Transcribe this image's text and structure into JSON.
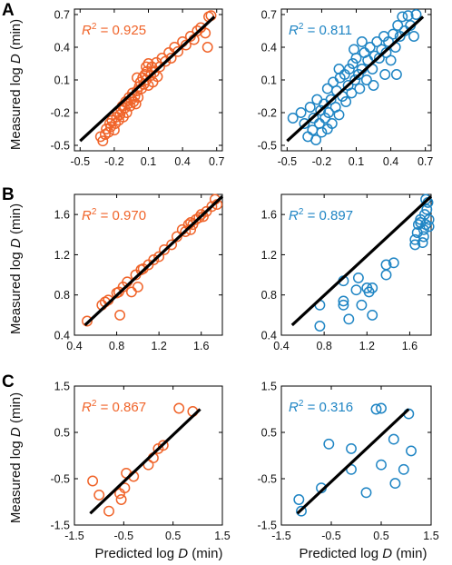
{
  "figure": {
    "xlabel_text": "Predicted log",
    "xlabel_var": "D",
    "xlabel_unit": "(min)",
    "ylabel_text": "Measured log",
    "ylabel_var": "D",
    "ylabel_unit": "(min)",
    "r2_prefix": "R",
    "r2_sup": "2",
    "colors": {
      "orange": "#f0642a",
      "blue": "#1f85c4",
      "line": "#000000",
      "axis": "#000000"
    }
  },
  "chart_data": [
    {
      "id": "A-left",
      "type": "scatter",
      "row": "A",
      "color": "orange",
      "r2_value": "0.925",
      "xlim": [
        -0.55,
        0.75
      ],
      "ylim": [
        -0.55,
        0.75
      ],
      "xticks": [
        -0.5,
        -0.2,
        0.1,
        0.4,
        0.7
      ],
      "yticks": [
        -0.5,
        -0.2,
        0.1,
        0.4,
        0.7
      ],
      "xtick_labels": [
        "-0.5",
        "-0.2",
        "0.1",
        "0.4",
        "0.7"
      ],
      "ytick_labels": [
        "-0.5",
        "-0.2",
        "0.1",
        "0.4",
        "0.7"
      ],
      "fit_line": {
        "x": [
          -0.5,
          0.68
        ],
        "y": [
          -0.46,
          0.68
        ]
      },
      "points": [
        [
          -0.32,
          -0.42
        ],
        [
          -0.3,
          -0.46
        ],
        [
          -0.28,
          -0.4
        ],
        [
          -0.27,
          -0.35
        ],
        [
          -0.25,
          -0.38
        ],
        [
          -0.24,
          -0.3
        ],
        [
          -0.23,
          -0.33
        ],
        [
          -0.22,
          -0.27
        ],
        [
          -0.2,
          -0.36
        ],
        [
          -0.19,
          -0.3
        ],
        [
          -0.18,
          -0.24
        ],
        [
          -0.17,
          -0.2
        ],
        [
          -0.16,
          -0.27
        ],
        [
          -0.15,
          -0.22
        ],
        [
          -0.14,
          -0.18
        ],
        [
          -0.13,
          -0.14
        ],
        [
          -0.12,
          -0.24
        ],
        [
          -0.11,
          -0.16
        ],
        [
          -0.1,
          -0.1
        ],
        [
          -0.09,
          -0.2
        ],
        [
          -0.08,
          -0.12
        ],
        [
          -0.07,
          -0.06
        ],
        [
          -0.06,
          -0.14
        ],
        [
          -0.05,
          -0.08
        ],
        [
          -0.04,
          -0.02
        ],
        [
          -0.03,
          -0.1
        ],
        [
          -0.02,
          -0.05
        ],
        [
          0.0,
          0.0
        ],
        [
          0.01,
          -0.06
        ],
        [
          0.02,
          0.04
        ],
        [
          0.03,
          0.08
        ],
        [
          0.04,
          0.02
        ],
        [
          0.05,
          0.12
        ],
        [
          0.06,
          0.06
        ],
        [
          0.07,
          0.15
        ],
        [
          0.08,
          0.1
        ],
        [
          0.09,
          0.18
        ],
        [
          0.1,
          0.05
        ],
        [
          0.12,
          0.14
        ],
        [
          0.13,
          0.22
        ],
        [
          0.15,
          0.17
        ],
        [
          0.17,
          0.26
        ],
        [
          0.2,
          0.22
        ],
        [
          0.22,
          0.3
        ],
        [
          0.25,
          0.27
        ],
        [
          0.28,
          0.35
        ],
        [
          0.3,
          0.3
        ],
        [
          0.33,
          0.4
        ],
        [
          0.36,
          0.36
        ],
        [
          0.4,
          0.45
        ],
        [
          0.43,
          0.42
        ],
        [
          0.47,
          0.5
        ],
        [
          0.5,
          0.47
        ],
        [
          0.53,
          0.55
        ],
        [
          0.56,
          0.58
        ],
        [
          0.6,
          0.53
        ],
        [
          0.63,
          0.68
        ],
        [
          0.65,
          0.69
        ],
        [
          0.62,
          0.4
        ],
        [
          0.0,
          0.12
        ],
        [
          0.08,
          0.22
        ],
        [
          0.18,
          0.13
        ],
        [
          -0.01,
          -0.12
        ],
        [
          0.1,
          0.25
        ],
        [
          0.14,
          0.08
        ]
      ]
    },
    {
      "id": "A-right",
      "type": "scatter",
      "row": "A",
      "color": "blue",
      "r2_value": "0.811",
      "xlim": [
        -0.55,
        0.75
      ],
      "ylim": [
        -0.55,
        0.75
      ],
      "xticks": [
        -0.5,
        -0.2,
        0.1,
        0.4,
        0.7
      ],
      "yticks": [
        -0.5,
        -0.2,
        0.1,
        0.4,
        0.7
      ],
      "xtick_labels": [
        "-0.5",
        "-0.2",
        "0.1",
        "0.4",
        "0.7"
      ],
      "ytick_labels": [
        "-0.5",
        "-0.2",
        "0.1",
        "0.4",
        "0.7"
      ],
      "fit_line": {
        "x": [
          -0.5,
          0.68
        ],
        "y": [
          -0.46,
          0.68
        ]
      },
      "points": [
        [
          -0.45,
          -0.25
        ],
        [
          -0.38,
          -0.2
        ],
        [
          -0.35,
          -0.3
        ],
        [
          -0.32,
          -0.42
        ],
        [
          -0.3,
          -0.15
        ],
        [
          -0.28,
          -0.36
        ],
        [
          -0.27,
          -0.25
        ],
        [
          -0.25,
          -0.45
        ],
        [
          -0.24,
          -0.08
        ],
        [
          -0.22,
          -0.3
        ],
        [
          -0.21,
          -0.18
        ],
        [
          -0.2,
          -0.38
        ],
        [
          -0.18,
          -0.12
        ],
        [
          -0.17,
          -0.25
        ],
        [
          -0.15,
          0.02
        ],
        [
          -0.14,
          -0.2
        ],
        [
          -0.12,
          -0.08
        ],
        [
          -0.11,
          -0.3
        ],
        [
          -0.1,
          0.08
        ],
        [
          -0.08,
          -0.15
        ],
        [
          -0.07,
          0.0
        ],
        [
          -0.05,
          -0.22
        ],
        [
          -0.04,
          0.12
        ],
        [
          -0.02,
          -0.05
        ],
        [
          0.0,
          0.15
        ],
        [
          0.01,
          -0.1
        ],
        [
          0.03,
          0.05
        ],
        [
          0.04,
          0.2
        ],
        [
          0.06,
          -0.02
        ],
        [
          0.07,
          0.25
        ],
        [
          0.09,
          0.1
        ],
        [
          0.1,
          0.3
        ],
        [
          0.12,
          0.15
        ],
        [
          0.13,
          0.02
        ],
        [
          0.15,
          0.2
        ],
        [
          0.17,
          0.35
        ],
        [
          0.19,
          0.1
        ],
        [
          0.2,
          0.28
        ],
        [
          0.22,
          0.4
        ],
        [
          0.24,
          0.2
        ],
        [
          0.26,
          0.32
        ],
        [
          0.28,
          0.45
        ],
        [
          0.3,
          0.3
        ],
        [
          0.32,
          0.38
        ],
        [
          0.34,
          0.5
        ],
        [
          0.36,
          0.35
        ],
        [
          0.38,
          0.45
        ],
        [
          0.4,
          0.28
        ],
        [
          0.42,
          0.52
        ],
        [
          0.44,
          0.4
        ],
        [
          0.46,
          0.6
        ],
        [
          0.48,
          0.5
        ],
        [
          0.5,
          0.68
        ],
        [
          0.52,
          0.55
        ],
        [
          0.55,
          0.69
        ],
        [
          0.57,
          0.6
        ],
        [
          0.6,
          0.5
        ],
        [
          0.62,
          0.7
        ],
        [
          0.35,
          0.15
        ],
        [
          0.25,
          0.05
        ],
        [
          0.15,
          0.45
        ],
        [
          -0.05,
          0.2
        ],
        [
          0.08,
          0.38
        ],
        [
          -0.15,
          -0.35
        ],
        [
          0.45,
          0.15
        ]
      ]
    },
    {
      "id": "B-left",
      "type": "scatter",
      "row": "B",
      "color": "orange",
      "r2_value": "0.970",
      "xlim": [
        0.4,
        1.8
      ],
      "ylim": [
        0.4,
        1.8
      ],
      "xticks": [
        0.4,
        0.8,
        1.2,
        1.6
      ],
      "yticks": [
        0.4,
        0.8,
        1.2,
        1.6
      ],
      "xtick_labels": [
        "0.4",
        "0.8",
        "1.2",
        "1.6"
      ],
      "ytick_labels": [
        "0.4",
        "0.8",
        "1.2",
        "1.6"
      ],
      "fit_line": {
        "x": [
          0.5,
          1.8
        ],
        "y": [
          0.5,
          1.78
        ]
      },
      "points": [
        [
          0.52,
          0.54
        ],
        [
          0.66,
          0.7
        ],
        [
          0.69,
          0.73
        ],
        [
          0.72,
          0.75
        ],
        [
          0.8,
          0.82
        ],
        [
          0.82,
          0.83
        ],
        [
          0.83,
          0.6
        ],
        [
          0.86,
          0.88
        ],
        [
          0.9,
          0.93
        ],
        [
          0.94,
          0.83
        ],
        [
          0.98,
          1.0
        ],
        [
          1.0,
          0.88
        ],
        [
          1.03,
          1.05
        ],
        [
          1.05,
          1.06
        ],
        [
          1.1,
          1.1
        ],
        [
          1.15,
          1.15
        ],
        [
          1.2,
          1.18
        ],
        [
          1.25,
          1.25
        ],
        [
          1.32,
          1.3
        ],
        [
          1.37,
          1.38
        ],
        [
          1.42,
          1.45
        ],
        [
          1.45,
          1.43
        ],
        [
          1.48,
          1.5
        ],
        [
          1.5,
          1.52
        ],
        [
          1.52,
          1.5
        ],
        [
          1.55,
          1.55
        ],
        [
          1.58,
          1.57
        ],
        [
          1.6,
          1.6
        ],
        [
          1.62,
          1.58
        ],
        [
          1.65,
          1.63
        ],
        [
          1.7,
          1.68
        ],
        [
          1.73,
          1.75
        ],
        [
          1.75,
          1.7
        ],
        [
          1.5,
          1.45
        ]
      ]
    },
    {
      "id": "B-right",
      "type": "scatter",
      "row": "B",
      "color": "blue",
      "r2_value": "0.897",
      "xlim": [
        0.4,
        1.8
      ],
      "ylim": [
        0.4,
        1.8
      ],
      "xticks": [
        0.4,
        0.8,
        1.2,
        1.6
      ],
      "yticks": [
        0.4,
        0.8,
        1.2,
        1.6
      ],
      "xtick_labels": [
        "0.4",
        "0.8",
        "1.2",
        "1.6"
      ],
      "ytick_labels": [
        "0.4",
        "0.8",
        "1.2",
        "1.6"
      ],
      "fit_line": {
        "x": [
          0.5,
          1.8
        ],
        "y": [
          0.5,
          1.78
        ]
      },
      "points": [
        [
          0.76,
          0.49
        ],
        [
          0.76,
          0.7
        ],
        [
          0.98,
          0.7
        ],
        [
          0.98,
          0.74
        ],
        [
          0.98,
          0.94
        ],
        [
          1.03,
          0.56
        ],
        [
          1.1,
          0.85
        ],
        [
          1.12,
          0.97
        ],
        [
          1.15,
          0.7
        ],
        [
          1.2,
          0.87
        ],
        [
          1.22,
          0.83
        ],
        [
          1.25,
          0.87
        ],
        [
          1.25,
          0.6
        ],
        [
          1.38,
          1.0
        ],
        [
          1.38,
          1.1
        ],
        [
          1.45,
          1.12
        ],
        [
          1.65,
          1.3
        ],
        [
          1.65,
          1.35
        ],
        [
          1.67,
          1.42
        ],
        [
          1.68,
          1.5
        ],
        [
          1.7,
          1.55
        ],
        [
          1.72,
          1.32
        ],
        [
          1.73,
          1.45
        ],
        [
          1.74,
          1.6
        ],
        [
          1.75,
          1.5
        ],
        [
          1.76,
          1.65
        ],
        [
          1.77,
          1.72
        ],
        [
          1.78,
          1.55
        ],
        [
          1.78,
          1.48
        ],
        [
          1.75,
          1.75
        ],
        [
          1.73,
          1.38
        ],
        [
          1.7,
          1.52
        ]
      ]
    },
    {
      "id": "C-left",
      "type": "scatter",
      "row": "C",
      "color": "orange",
      "r2_value": "0.867",
      "xlim": [
        -1.5,
        1.5
      ],
      "ylim": [
        -1.5,
        1.5
      ],
      "xticks": [
        -1.5,
        -0.5,
        0.5,
        1.5
      ],
      "yticks": [
        -1.5,
        -0.5,
        0.5,
        1.5
      ],
      "xtick_labels": [
        "-1.5",
        "-0.5",
        "0.5",
        "1.5"
      ],
      "ytick_labels": [
        "-1.5",
        "-0.5",
        "0.5",
        "1.5"
      ],
      "fit_line": {
        "x": [
          -1.18,
          1.05
        ],
        "y": [
          -1.25,
          1.0
        ]
      },
      "points": [
        [
          -1.13,
          -0.55
        ],
        [
          -1.0,
          -0.85
        ],
        [
          -0.8,
          -1.2
        ],
        [
          -0.58,
          -0.82
        ],
        [
          -0.55,
          -0.95
        ],
        [
          -0.45,
          -0.38
        ],
        [
          -0.48,
          -0.7
        ],
        [
          -0.3,
          -0.45
        ],
        [
          0.0,
          -0.2
        ],
        [
          0.1,
          -0.05
        ],
        [
          0.2,
          0.15
        ],
        [
          0.3,
          0.22
        ],
        [
          0.62,
          1.02
        ],
        [
          0.9,
          0.95
        ]
      ]
    },
    {
      "id": "C-right",
      "type": "scatter",
      "row": "C",
      "color": "blue",
      "r2_value": "0.316",
      "xlim": [
        -1.5,
        1.5
      ],
      "ylim": [
        -1.5,
        1.5
      ],
      "xticks": [
        -1.5,
        -0.5,
        0.5,
        1.5
      ],
      "yticks": [
        -1.5,
        -0.5,
        0.5,
        1.5
      ],
      "xtick_labels": [
        "-1.5",
        "-0.5",
        "0.5",
        "1.5"
      ],
      "ytick_labels": [
        "-1.5",
        "-0.5",
        "0.5",
        "1.5"
      ],
      "fit_line": {
        "x": [
          -1.18,
          1.05
        ],
        "y": [
          -1.25,
          1.0
        ]
      },
      "points": [
        [
          -1.15,
          -0.95
        ],
        [
          -1.1,
          -1.2
        ],
        [
          -0.7,
          -0.7
        ],
        [
          -0.55,
          0.25
        ],
        [
          -0.1,
          0.15
        ],
        [
          -0.1,
          -0.3
        ],
        [
          0.2,
          -0.8
        ],
        [
          0.4,
          1.0
        ],
        [
          0.5,
          1.02
        ],
        [
          0.5,
          -0.2
        ],
        [
          0.75,
          0.35
        ],
        [
          0.78,
          -0.6
        ],
        [
          0.95,
          -0.3
        ],
        [
          1.05,
          0.9
        ],
        [
          1.1,
          0.1
        ]
      ]
    }
  ]
}
